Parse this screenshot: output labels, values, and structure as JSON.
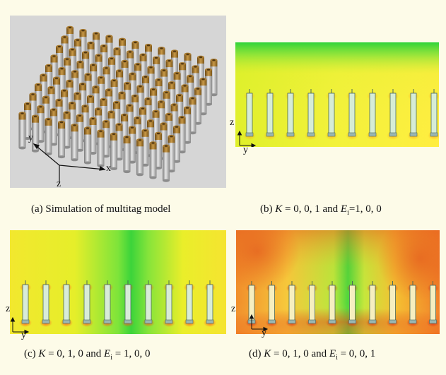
{
  "figure": {
    "background": "#fdfbe8",
    "panel_a": {
      "caption": "(a) Simulation of multitag model",
      "axis_labels": {
        "y": "y",
        "x": "x",
        "z": "z"
      },
      "grid_cols": 12,
      "grid_rows": 10
    },
    "panel_b": {
      "caption_prefix": "(b) ",
      "caption_k_symbol": "K",
      "caption_k_value": " = 0, 0, 1 and ",
      "caption_e_symbol": "E",
      "caption_e_sub": "i",
      "caption_e_value": "=1, 0, 0",
      "axis_labels": {
        "vertical": "z",
        "horizontal": "y"
      },
      "tag_count": 10
    },
    "panel_c": {
      "caption_prefix": "(c) ",
      "caption_k_symbol": "K",
      "caption_k_value": " = 0, 1, 0 and ",
      "caption_e_symbol": "E",
      "caption_e_sub": "i",
      "caption_e_value": " = 1, 0, 0",
      "axis_labels": {
        "vertical": "z",
        "horizontal": "y"
      },
      "tag_count": 10
    },
    "panel_d": {
      "caption_prefix": "(d) ",
      "caption_k_symbol": "K",
      "caption_k_value": " = 0, 1, 0 and ",
      "caption_e_symbol": "E",
      "caption_e_sub": "i",
      "caption_e_value": " = 0, 0, 1",
      "axis_labels": {
        "vertical": "z",
        "horizontal": "y"
      },
      "tag_count": 10
    }
  }
}
